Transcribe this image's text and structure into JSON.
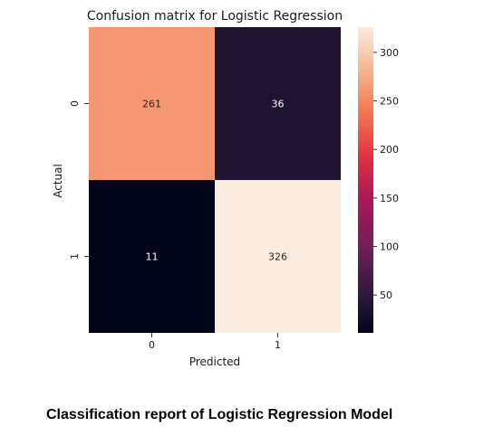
{
  "chart_data": {
    "type": "heatmap",
    "title": "Confusion matrix for Logistic Regression",
    "xlabel": "Predicted",
    "ylabel": "Actual",
    "x_categories": [
      "0",
      "1"
    ],
    "y_categories": [
      "0",
      "1"
    ],
    "values": [
      [
        261,
        36
      ],
      [
        11,
        326
      ]
    ],
    "colorbar": {
      "min": 11,
      "max": 326,
      "ticks": [
        50,
        100,
        150,
        200,
        250,
        300
      ],
      "colormap": "rocket"
    }
  },
  "caption": "Classification report of Logistic Regression Model"
}
